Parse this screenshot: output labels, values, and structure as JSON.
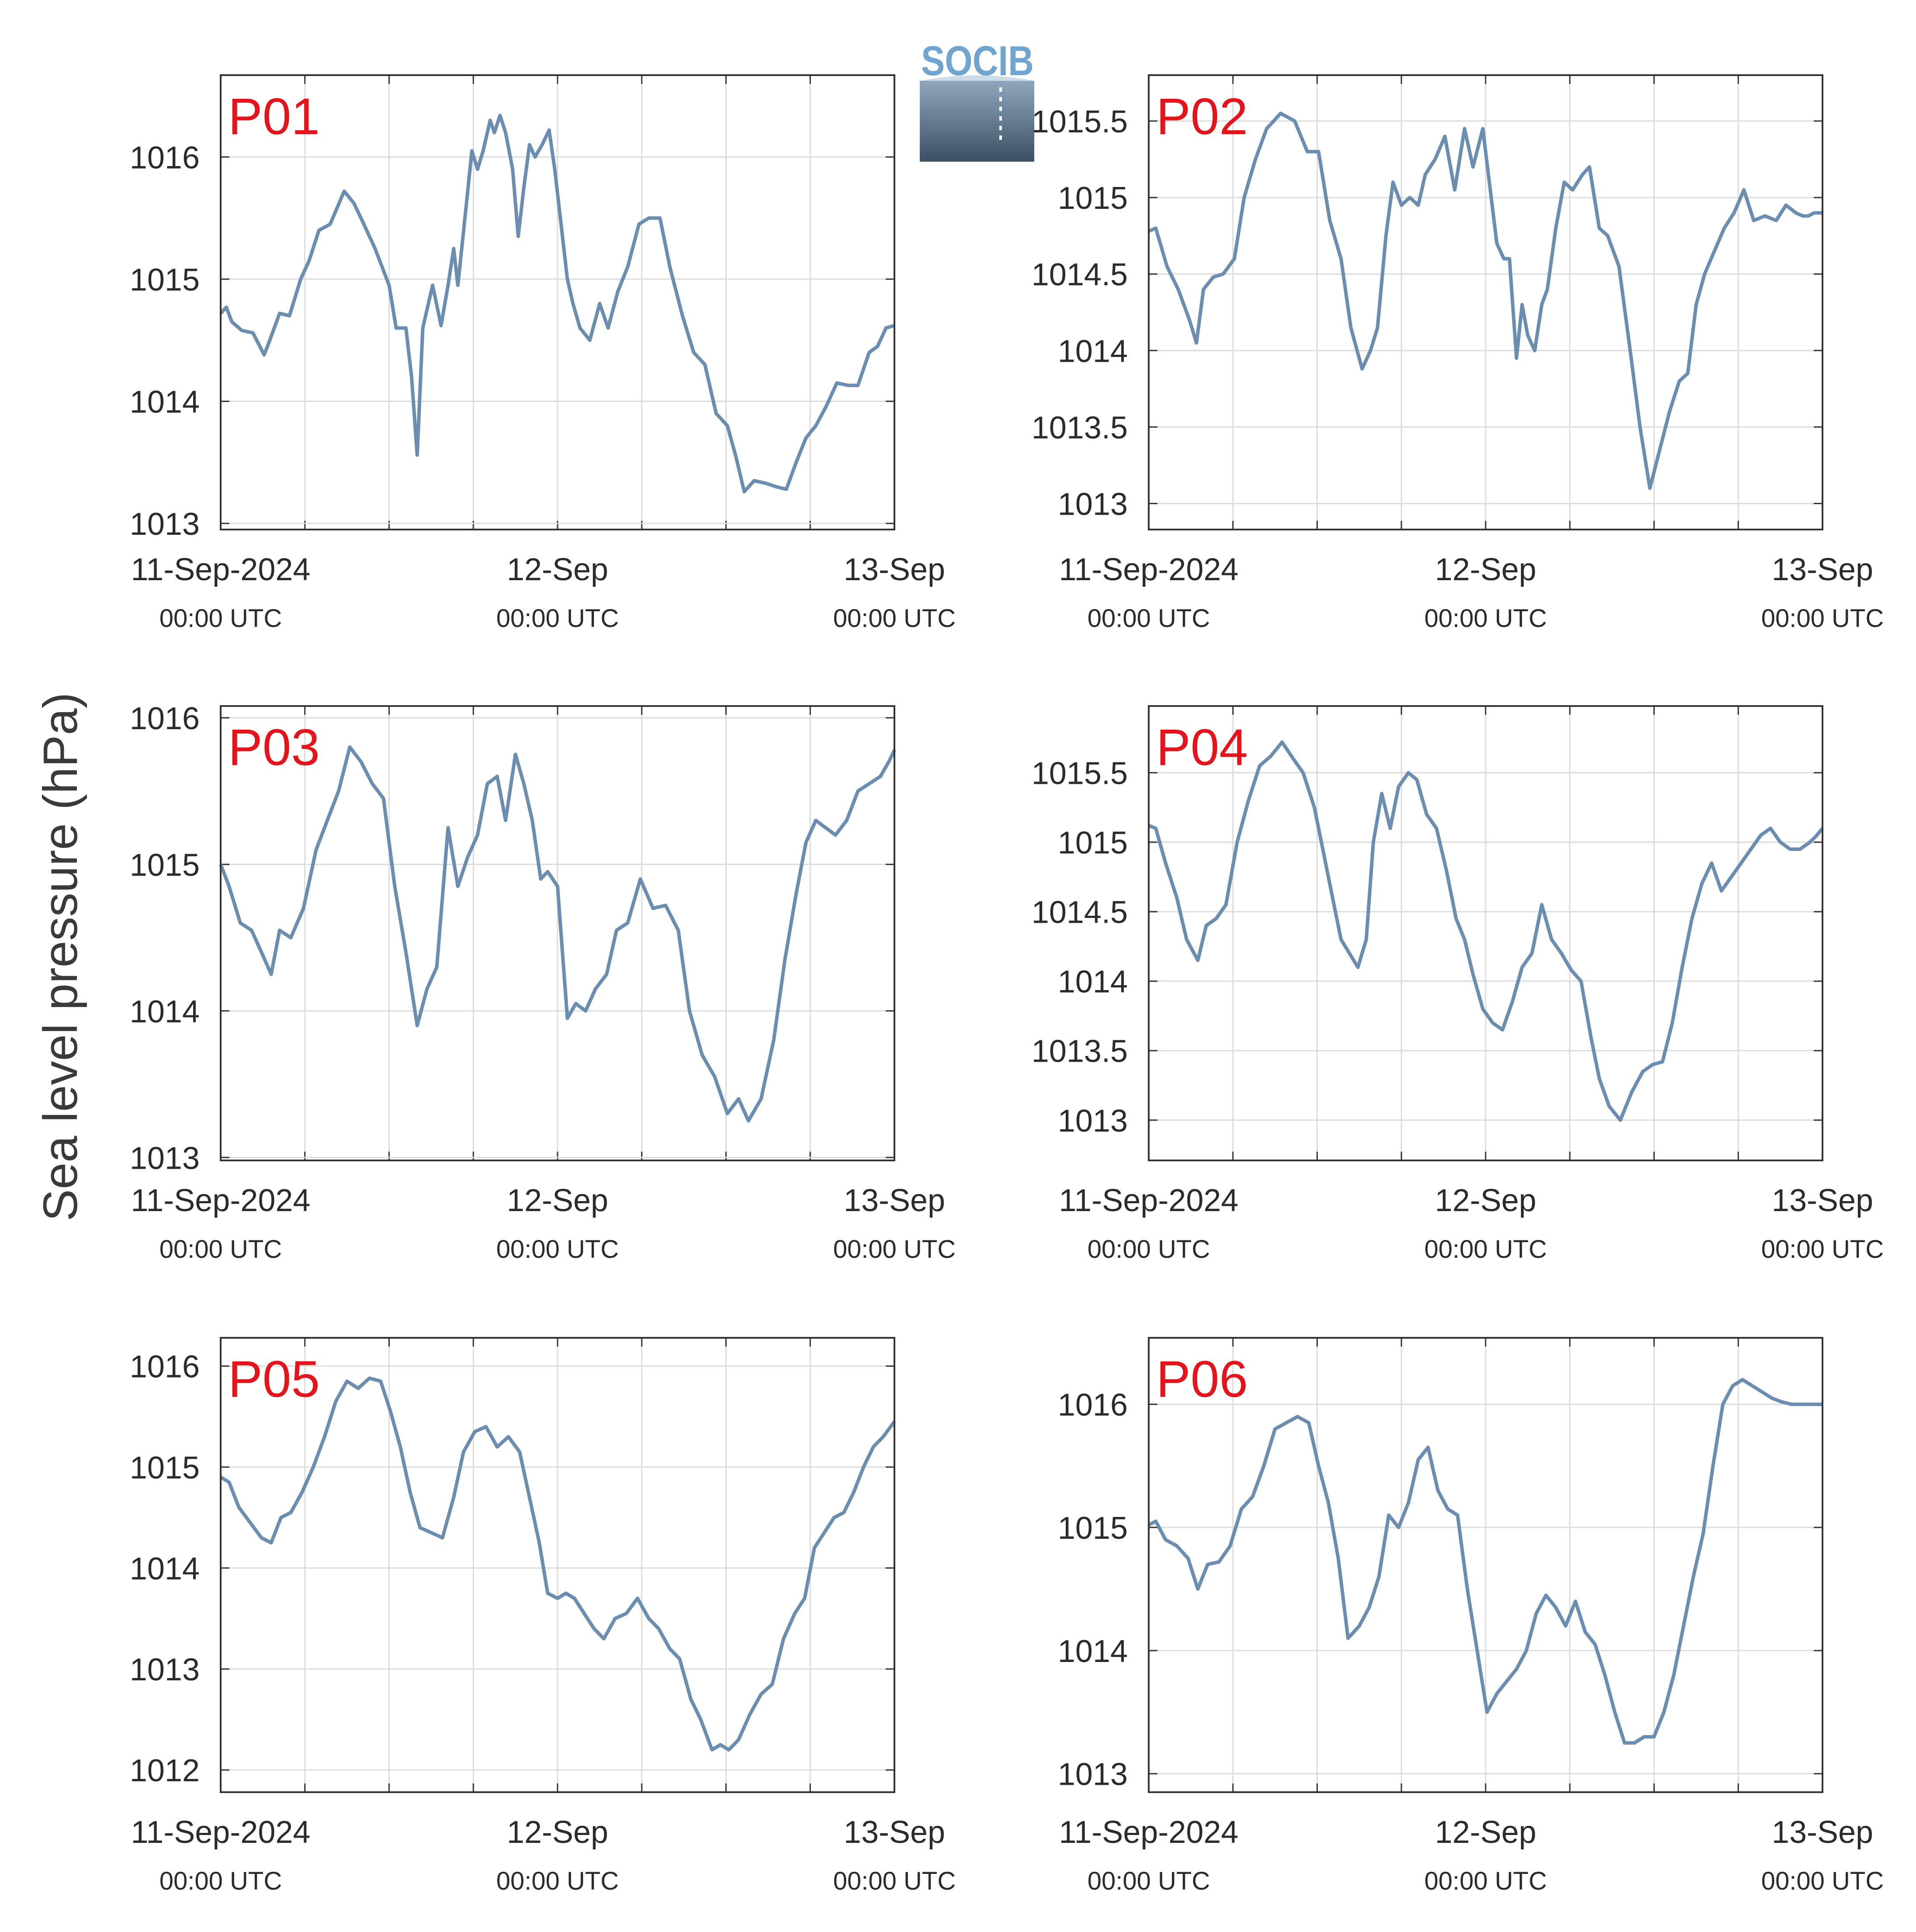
{
  "ylabel": "Sea level pressure (hPa)",
  "logo": {
    "text": "SOCIB",
    "top_color": "#8fa7bd",
    "bottom_color": "#3c4f64"
  },
  "line_color": "#6b8db0",
  "label_color": "#e3141b",
  "x_ticks": [
    {
      "top": "11-Sep-2024",
      "bottom": "00:00 UTC"
    },
    {
      "top": "12-Sep",
      "bottom": "00:00 UTC"
    },
    {
      "top": "13-Sep",
      "bottom": "00:00 UTC"
    }
  ],
  "chart_data": [
    {
      "type": "line",
      "title": "P01",
      "xlim": [
        0,
        48
      ],
      "ylim": [
        1012.95,
        1016.67
      ],
      "yticks": [
        1013,
        1014,
        1015,
        1016
      ],
      "ytick_labels": [
        "1013",
        "1014",
        "1015",
        "1016"
      ],
      "x": [
        0,
        0.4,
        0.8,
        1.5,
        2.3,
        3.1,
        3.5,
        4.2,
        4.9,
        5.7,
        6.3,
        7.0,
        7.8,
        8.8,
        9.5,
        10.2,
        11.0,
        12.0,
        12.5,
        13.2,
        13.6,
        14.0,
        14.4,
        15.1,
        15.7,
        16.2,
        16.6,
        16.9,
        17.4,
        17.9,
        18.3,
        18.7,
        19.2,
        19.5,
        19.9,
        20.3,
        20.8,
        21.2,
        21.6,
        22.0,
        22.4,
        22.9,
        23.4,
        23.8,
        24.2,
        24.7,
        25.1,
        25.6,
        26.3,
        27.0,
        27.6,
        28.3,
        29.0,
        29.8,
        30.5,
        31.3,
        32.0,
        32.9,
        33.7,
        34.5,
        35.3,
        36.1,
        36.7,
        37.3,
        38.0,
        38.8,
        39.6,
        40.3,
        41.0,
        41.7,
        42.4,
        43.1,
        43.9,
        44.7,
        45.4,
        46.2,
        46.8,
        47.4,
        48.0
      ],
      "y": [
        1014.72,
        1014.77,
        1014.65,
        1014.58,
        1014.56,
        1014.38,
        1014.5,
        1014.72,
        1014.7,
        1015.0,
        1015.15,
        1015.4,
        1015.45,
        1015.72,
        1015.62,
        1015.45,
        1015.25,
        1014.95,
        1014.6,
        1014.6,
        1014.2,
        1013.56,
        1014.6,
        1014.95,
        1014.62,
        1014.95,
        1015.25,
        1014.95,
        1015.5,
        1016.05,
        1015.9,
        1016.05,
        1016.3,
        1016.2,
        1016.34,
        1016.2,
        1015.9,
        1015.35,
        1015.75,
        1016.1,
        1016.0,
        1016.1,
        1016.22,
        1015.9,
        1015.5,
        1015.0,
        1014.8,
        1014.6,
        1014.5,
        1014.8,
        1014.6,
        1014.9,
        1015.1,
        1015.45,
        1015.5,
        1015.5,
        1015.1,
        1014.7,
        1014.4,
        1014.3,
        1013.9,
        1013.8,
        1013.55,
        1013.26,
        1013.35,
        1013.33,
        1013.3,
        1013.28,
        1013.5,
        1013.7,
        1013.8,
        1013.95,
        1014.15,
        1014.13,
        1014.13,
        1014.4,
        1014.45,
        1014.6,
        1014.62
      ]
    },
    {
      "type": "line",
      "title": "P02",
      "xlim": [
        0,
        48
      ],
      "ylim": [
        1012.83,
        1015.8
      ],
      "yticks": [
        1013,
        1013.5,
        1014,
        1014.5,
        1015,
        1015.5
      ],
      "ytick_labels": [
        "1013",
        "1013.5",
        "1014",
        "1014.5",
        "1015",
        "1015.5"
      ],
      "x": [
        0,
        0.5,
        1.3,
        2.1,
        2.9,
        3.4,
        3.9,
        4.6,
        5.3,
        6.1,
        6.8,
        7.6,
        8.4,
        9.4,
        10.4,
        11.3,
        12.1,
        12.9,
        13.7,
        14.4,
        15.2,
        15.8,
        16.3,
        16.9,
        17.4,
        18.0,
        18.6,
        19.2,
        19.7,
        20.4,
        21.1,
        21.8,
        22.5,
        23.1,
        23.8,
        24.4,
        24.8,
        25.3,
        25.7,
        26.2,
        26.6,
        27.0,
        27.5,
        28.0,
        28.4,
        29.0,
        29.6,
        30.2,
        30.9,
        31.4,
        32.1,
        32.7,
        33.5,
        34.3,
        35.0,
        35.7,
        36.4,
        37.1,
        37.8,
        38.4,
        39.0,
        39.6,
        40.3,
        41.0,
        41.7,
        42.4,
        43.1,
        43.9,
        44.7,
        45.4,
        46.1,
        46.6,
        47.0,
        47.4,
        47.8,
        48.0
      ],
      "y": [
        1014.78,
        1014.8,
        1014.55,
        1014.4,
        1014.2,
        1014.05,
        1014.4,
        1014.48,
        1014.5,
        1014.6,
        1015.0,
        1015.25,
        1015.45,
        1015.55,
        1015.5,
        1015.3,
        1015.3,
        1014.85,
        1014.6,
        1014.15,
        1013.88,
        1014.0,
        1014.15,
        1014.75,
        1015.1,
        1014.95,
        1015.0,
        1014.95,
        1015.15,
        1015.25,
        1015.4,
        1015.05,
        1015.45,
        1015.2,
        1015.45,
        1015.0,
        1014.7,
        1014.6,
        1014.6,
        1013.95,
        1014.3,
        1014.1,
        1014.0,
        1014.3,
        1014.4,
        1014.8,
        1015.1,
        1015.05,
        1015.15,
        1015.2,
        1014.8,
        1014.75,
        1014.55,
        1014.0,
        1013.5,
        1013.1,
        1013.35,
        1013.6,
        1013.8,
        1013.85,
        1014.3,
        1014.5,
        1014.65,
        1014.8,
        1014.9,
        1015.05,
        1014.85,
        1014.88,
        1014.85,
        1014.95,
        1014.9,
        1014.88,
        1014.88,
        1014.9,
        1014.9,
        1014.9
      ]
    },
    {
      "type": "line",
      "title": "P03",
      "xlim": [
        0,
        48
      ],
      "ylim": [
        1012.98,
        1016.08
      ],
      "yticks": [
        1013,
        1014,
        1015,
        1016
      ],
      "ytick_labels": [
        "1013",
        "1014",
        "1015",
        "1016"
      ],
      "x": [
        0,
        0.6,
        1.4,
        2.2,
        3.0,
        3.6,
        4.2,
        5.0,
        5.9,
        6.8,
        7.6,
        8.4,
        9.2,
        10.0,
        10.8,
        11.6,
        12.4,
        13.2,
        14.0,
        14.7,
        15.4,
        16.2,
        16.9,
        17.6,
        18.3,
        19.0,
        19.7,
        20.3,
        21.0,
        21.6,
        22.2,
        22.8,
        23.3,
        24.0,
        24.7,
        25.3,
        26.0,
        26.7,
        27.5,
        28.2,
        29.0,
        29.9,
        30.8,
        31.7,
        32.6,
        33.4,
        34.3,
        35.2,
        36.1,
        36.9,
        37.6,
        38.5,
        39.4,
        40.2,
        41.0,
        41.7,
        42.4,
        43.1,
        43.8,
        44.6,
        45.4,
        46.2,
        47.0,
        47.6,
        48.0
      ],
      "y": [
        1015.0,
        1014.85,
        1014.6,
        1014.55,
        1014.38,
        1014.25,
        1014.55,
        1014.5,
        1014.7,
        1015.1,
        1015.3,
        1015.5,
        1015.8,
        1015.7,
        1015.55,
        1015.45,
        1014.85,
        1014.4,
        1013.9,
        1014.15,
        1014.3,
        1015.25,
        1014.85,
        1015.05,
        1015.2,
        1015.55,
        1015.6,
        1015.3,
        1015.75,
        1015.55,
        1015.3,
        1014.9,
        1014.95,
        1014.85,
        1013.95,
        1014.05,
        1014.0,
        1014.15,
        1014.25,
        1014.55,
        1014.6,
        1014.9,
        1014.7,
        1014.72,
        1014.55,
        1014.0,
        1013.7,
        1013.55,
        1013.3,
        1013.4,
        1013.25,
        1013.4,
        1013.8,
        1014.35,
        1014.8,
        1015.15,
        1015.3,
        1015.25,
        1015.2,
        1015.3,
        1015.5,
        1015.55,
        1015.6,
        1015.7,
        1015.78
      ]
    },
    {
      "type": "line",
      "title": "P04",
      "xlim": [
        0,
        48
      ],
      "ylim": [
        1012.71,
        1015.98
      ],
      "yticks": [
        1013,
        1013.5,
        1014,
        1014.5,
        1015,
        1015.5
      ],
      "ytick_labels": [
        "1013",
        "1013.5",
        "1014",
        "1014.5",
        "1015",
        "1015.5"
      ],
      "x": [
        0,
        0.5,
        1.2,
        2.0,
        2.7,
        3.5,
        4.1,
        4.8,
        5.5,
        6.3,
        7.1,
        7.9,
        8.7,
        9.5,
        10.3,
        11.0,
        11.8,
        12.5,
        13.1,
        13.7,
        14.3,
        14.9,
        15.5,
        16.0,
        16.6,
        17.2,
        17.8,
        18.5,
        19.1,
        19.8,
        20.5,
        21.2,
        21.9,
        22.5,
        23.1,
        23.8,
        24.5,
        25.2,
        25.9,
        26.6,
        27.3,
        28.0,
        28.7,
        29.4,
        30.1,
        30.8,
        31.5,
        32.1,
        32.8,
        33.6,
        34.4,
        35.2,
        35.9,
        36.6,
        37.3,
        38.0,
        38.7,
        39.4,
        40.1,
        40.8,
        41.5,
        42.2,
        42.9,
        43.6,
        44.3,
        45.0,
        45.7,
        46.4,
        47.1,
        47.6,
        48.0
      ],
      "y": [
        1015.12,
        1015.1,
        1014.85,
        1014.6,
        1014.3,
        1014.15,
        1014.4,
        1014.45,
        1014.55,
        1015.0,
        1015.3,
        1015.55,
        1015.62,
        1015.72,
        1015.6,
        1015.5,
        1015.25,
        1014.9,
        1014.6,
        1014.3,
        1014.2,
        1014.1,
        1014.3,
        1015.0,
        1015.35,
        1015.1,
        1015.4,
        1015.5,
        1015.45,
        1015.2,
        1015.1,
        1014.8,
        1014.45,
        1014.3,
        1014.05,
        1013.8,
        1013.7,
        1013.65,
        1013.85,
        1014.1,
        1014.2,
        1014.55,
        1014.3,
        1014.2,
        1014.08,
        1014.0,
        1013.6,
        1013.3,
        1013.1,
        1013.0,
        1013.2,
        1013.35,
        1013.4,
        1013.42,
        1013.7,
        1014.1,
        1014.45,
        1014.7,
        1014.85,
        1014.65,
        1014.75,
        1014.85,
        1014.95,
        1015.05,
        1015.1,
        1015.0,
        1014.95,
        1014.95,
        1015.0,
        1015.05,
        1015.1
      ]
    },
    {
      "type": "line",
      "title": "P05",
      "xlim": [
        0,
        48
      ],
      "ylim": [
        1011.78,
        1016.28
      ],
      "yticks": [
        1012,
        1013,
        1014,
        1015,
        1016
      ],
      "ytick_labels": [
        "1012",
        "1013",
        "1014",
        "1015",
        "1016"
      ],
      "x": [
        0,
        0.6,
        1.3,
        2.1,
        2.9,
        3.6,
        4.3,
        5.0,
        5.8,
        6.6,
        7.4,
        8.2,
        9.0,
        9.8,
        10.6,
        11.4,
        12.1,
        12.8,
        13.5,
        14.2,
        15.0,
        15.8,
        16.6,
        17.3,
        18.1,
        18.9,
        19.7,
        20.5,
        21.3,
        22.0,
        22.7,
        23.3,
        24.0,
        24.6,
        25.2,
        25.9,
        26.6,
        27.3,
        28.1,
        28.9,
        29.7,
        30.5,
        31.2,
        32.0,
        32.7,
        33.5,
        34.2,
        35.0,
        35.6,
        36.2,
        36.9,
        37.7,
        38.5,
        39.3,
        40.1,
        40.9,
        41.6,
        42.3,
        43.0,
        43.7,
        44.4,
        45.1,
        45.8,
        46.5,
        47.2,
        48.0
      ],
      "y": [
        1014.9,
        1014.85,
        1014.6,
        1014.45,
        1014.3,
        1014.25,
        1014.5,
        1014.55,
        1014.75,
        1015.0,
        1015.3,
        1015.65,
        1015.85,
        1015.78,
        1015.88,
        1015.85,
        1015.55,
        1015.2,
        1014.75,
        1014.4,
        1014.35,
        1014.3,
        1014.7,
        1015.15,
        1015.35,
        1015.4,
        1015.2,
        1015.3,
        1015.15,
        1014.7,
        1014.25,
        1013.75,
        1013.7,
        1013.75,
        1013.7,
        1013.55,
        1013.4,
        1013.3,
        1013.5,
        1013.55,
        1013.7,
        1013.5,
        1013.4,
        1013.2,
        1013.1,
        1012.7,
        1012.5,
        1012.2,
        1012.25,
        1012.2,
        1012.3,
        1012.55,
        1012.75,
        1012.85,
        1013.3,
        1013.55,
        1013.7,
        1014.2,
        1014.35,
        1014.5,
        1014.55,
        1014.75,
        1015.0,
        1015.2,
        1015.3,
        1015.45
      ]
    },
    {
      "type": "line",
      "title": "P06",
      "xlim": [
        0,
        48
      ],
      "ylim": [
        1012.85,
        1016.54
      ],
      "yticks": [
        1013,
        1014,
        1015,
        1016
      ],
      "ytick_labels": [
        "1013",
        "1014",
        "1015",
        "1016"
      ],
      "x": [
        0,
        0.5,
        1.2,
        2.0,
        2.8,
        3.5,
        4.2,
        5.0,
        5.8,
        6.6,
        7.4,
        8.2,
        9.0,
        9.8,
        10.6,
        11.4,
        12.1,
        12.8,
        13.5,
        14.2,
        15.0,
        15.7,
        16.4,
        17.1,
        17.8,
        18.5,
        19.2,
        19.9,
        20.6,
        21.3,
        22.0,
        22.7,
        23.4,
        24.1,
        24.8,
        25.5,
        26.2,
        26.9,
        27.6,
        28.3,
        29.0,
        29.7,
        30.4,
        31.1,
        31.8,
        32.5,
        33.2,
        33.9,
        34.6,
        35.3,
        36.0,
        36.7,
        37.4,
        38.1,
        38.8,
        39.5,
        40.2,
        40.9,
        41.6,
        42.3,
        43.0,
        43.7,
        44.4,
        45.1,
        45.8,
        46.5,
        47.2,
        48.0
      ],
      "y": [
        1015.02,
        1015.05,
        1014.9,
        1014.85,
        1014.75,
        1014.5,
        1014.7,
        1014.72,
        1014.85,
        1015.15,
        1015.25,
        1015.5,
        1015.8,
        1015.85,
        1015.9,
        1015.85,
        1015.5,
        1015.2,
        1014.75,
        1014.1,
        1014.2,
        1014.35,
        1014.6,
        1015.1,
        1015.0,
        1015.2,
        1015.55,
        1015.65,
        1015.3,
        1015.15,
        1015.1,
        1014.5,
        1014.0,
        1013.5,
        1013.65,
        1013.75,
        1013.85,
        1014.0,
        1014.3,
        1014.45,
        1014.35,
        1014.2,
        1014.4,
        1014.15,
        1014.05,
        1013.8,
        1013.5,
        1013.25,
        1013.25,
        1013.3,
        1013.3,
        1013.5,
        1013.8,
        1014.2,
        1014.6,
        1014.95,
        1015.5,
        1016.0,
        1016.15,
        1016.2,
        1016.15,
        1016.1,
        1016.05,
        1016.02,
        1016.0,
        1016.0,
        1016.0,
        1016.0
      ]
    }
  ]
}
